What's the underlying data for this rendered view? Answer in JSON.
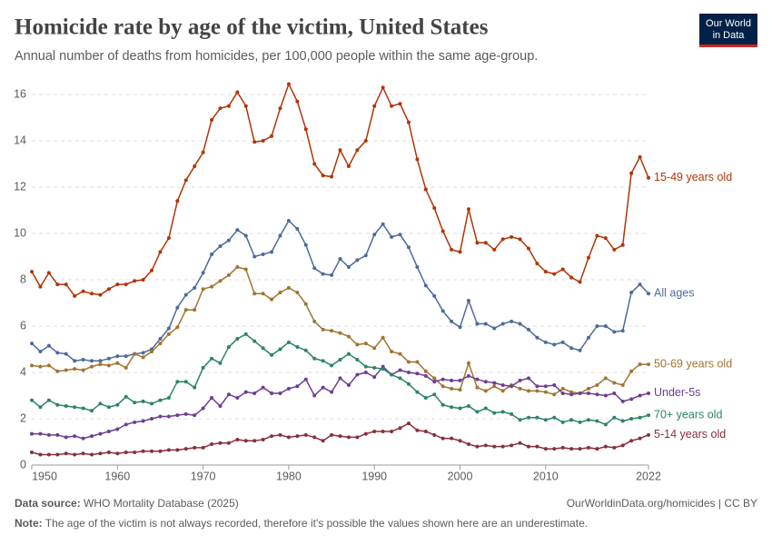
{
  "chart_data": {
    "type": "line",
    "title": "Homicide rate by age of the victim, United States",
    "subtitle": "Annual number of deaths from homicides, per 100,000 people within the same age-group.",
    "logo": [
      "Our World",
      "in Data"
    ],
    "source_label": "Data source:",
    "source": "WHO Mortality Database (2025)",
    "url": "OurWorldinData.org/homicides | CC BY",
    "note_label": "Note:",
    "note": "The age of the victim is not always recorded, therefore it's possible the values shown here are an underestimate.",
    "x": [
      1950,
      1951,
      1952,
      1953,
      1954,
      1955,
      1956,
      1957,
      1958,
      1959,
      1960,
      1961,
      1962,
      1963,
      1964,
      1965,
      1966,
      1967,
      1968,
      1969,
      1970,
      1971,
      1972,
      1973,
      1974,
      1975,
      1976,
      1977,
      1978,
      1979,
      1980,
      1981,
      1982,
      1983,
      1984,
      1985,
      1986,
      1987,
      1988,
      1989,
      1990,
      1991,
      1992,
      1993,
      1994,
      1995,
      1996,
      1997,
      1998,
      1999,
      2000,
      2001,
      2002,
      2003,
      2004,
      2005,
      2006,
      2007,
      2008,
      2009,
      2010,
      2011,
      2012,
      2013,
      2014,
      2015,
      2016,
      2017,
      2018,
      2019,
      2020,
      2021,
      2022
    ],
    "xlim": [
      1950,
      2022
    ],
    "xticks": [
      1950,
      1960,
      1970,
      1980,
      1990,
      2000,
      2010,
      2022
    ],
    "ylim": [
      0,
      16
    ],
    "yticks": [
      0,
      2,
      4,
      6,
      8,
      10,
      12,
      14,
      16
    ],
    "grid": true,
    "series": [
      {
        "name": "15-49 years old",
        "color": "#b13507",
        "values": [
          8.35,
          7.7,
          8.3,
          7.8,
          7.8,
          7.3,
          7.5,
          7.4,
          7.35,
          7.6,
          7.8,
          7.8,
          7.95,
          8.0,
          8.4,
          9.2,
          9.8,
          11.4,
          12.3,
          12.9,
          13.5,
          14.9,
          15.4,
          15.5,
          16.1,
          15.5,
          13.95,
          14.0,
          14.2,
          15.4,
          16.45,
          15.7,
          14.5,
          13.0,
          12.5,
          12.45,
          13.6,
          12.9,
          13.6,
          14.0,
          15.5,
          16.3,
          15.5,
          15.6,
          14.8,
          13.2,
          11.9,
          11.1,
          10.1,
          9.3,
          9.2,
          11.05,
          9.6,
          9.6,
          9.3,
          9.75,
          9.85,
          9.75,
          9.35,
          8.7,
          8.35,
          8.25,
          8.45,
          8.1,
          7.9,
          8.95,
          9.9,
          9.8,
          9.3,
          9.5,
          12.6,
          13.3,
          12.4
        ]
      },
      {
        "name": "All ages",
        "color": "#4c6a9c",
        "values": [
          5.25,
          4.9,
          5.15,
          4.85,
          4.8,
          4.5,
          4.55,
          4.5,
          4.5,
          4.6,
          4.7,
          4.7,
          4.8,
          4.85,
          5.0,
          5.45,
          5.9,
          6.8,
          7.35,
          7.65,
          8.3,
          9.1,
          9.45,
          9.7,
          10.15,
          9.9,
          9.0,
          9.1,
          9.2,
          9.9,
          10.55,
          10.2,
          9.5,
          8.5,
          8.25,
          8.2,
          8.9,
          8.55,
          8.85,
          9.05,
          9.95,
          10.4,
          9.85,
          9.95,
          9.4,
          8.55,
          7.75,
          7.3,
          6.65,
          6.2,
          5.95,
          7.1,
          6.1,
          6.1,
          5.9,
          6.1,
          6.2,
          6.1,
          5.85,
          5.5,
          5.3,
          5.2,
          5.3,
          5.05,
          4.95,
          5.5,
          6.0,
          6.0,
          5.75,
          5.8,
          7.45,
          7.8,
          7.4
        ]
      },
      {
        "name": "50-69 years old",
        "color": "#a2742f",
        "values": [
          4.3,
          4.25,
          4.3,
          4.05,
          4.1,
          4.15,
          4.1,
          4.25,
          4.35,
          4.3,
          4.4,
          4.2,
          4.8,
          4.65,
          4.9,
          5.25,
          5.65,
          5.95,
          6.7,
          6.7,
          7.6,
          7.7,
          7.95,
          8.2,
          8.55,
          8.45,
          7.4,
          7.4,
          7.15,
          7.45,
          7.65,
          7.45,
          6.95,
          6.2,
          5.85,
          5.8,
          5.7,
          5.55,
          5.2,
          5.25,
          5.05,
          5.5,
          4.9,
          4.8,
          4.45,
          4.45,
          4.05,
          3.75,
          3.4,
          3.3,
          3.25,
          4.4,
          3.35,
          3.2,
          3.4,
          3.2,
          3.45,
          3.3,
          3.2,
          3.2,
          3.15,
          3.05,
          3.3,
          3.15,
          3.1,
          3.3,
          3.45,
          3.75,
          3.55,
          3.45,
          4.05,
          4.35,
          4.35
        ]
      },
      {
        "name": "Under-5s",
        "color": "#6d3e91",
        "values": [
          1.35,
          1.35,
          1.3,
          1.3,
          1.2,
          1.25,
          1.15,
          1.25,
          1.35,
          1.45,
          1.55,
          1.75,
          1.85,
          1.9,
          2.0,
          2.1,
          2.1,
          2.15,
          2.2,
          2.15,
          2.45,
          2.9,
          2.55,
          3.05,
          2.9,
          3.15,
          3.1,
          3.35,
          3.1,
          3.1,
          3.3,
          3.4,
          3.7,
          3.0,
          3.35,
          3.15,
          3.75,
          3.45,
          3.9,
          4.0,
          3.8,
          4.25,
          3.9,
          4.1,
          4.0,
          3.95,
          3.85,
          3.6,
          3.7,
          3.65,
          3.65,
          3.85,
          3.7,
          3.6,
          3.55,
          3.45,
          3.4,
          3.65,
          3.75,
          3.4,
          3.4,
          3.45,
          3.1,
          3.05,
          3.1,
          3.1,
          3.05,
          3.0,
          3.1,
          2.75,
          2.85,
          3.0,
          3.1
        ]
      },
      {
        "name": "70+ years old",
        "color": "#2c8465",
        "values": [
          2.8,
          2.5,
          2.8,
          2.6,
          2.55,
          2.5,
          2.45,
          2.35,
          2.65,
          2.5,
          2.6,
          2.95,
          2.7,
          2.75,
          2.65,
          2.8,
          2.9,
          3.6,
          3.6,
          3.35,
          4.2,
          4.6,
          4.4,
          5.1,
          5.45,
          5.65,
          5.35,
          5.05,
          4.75,
          5.0,
          5.3,
          5.1,
          4.95,
          4.6,
          4.5,
          4.3,
          4.55,
          4.8,
          4.55,
          4.25,
          4.2,
          4.15,
          3.9,
          3.75,
          3.5,
          3.15,
          2.9,
          3.05,
          2.6,
          2.5,
          2.45,
          2.55,
          2.3,
          2.45,
          2.25,
          2.3,
          2.2,
          1.95,
          2.05,
          2.05,
          1.95,
          2.05,
          1.85,
          1.95,
          1.85,
          1.95,
          1.9,
          1.75,
          2.05,
          1.9,
          2.0,
          2.05,
          2.15
        ]
      },
      {
        "name": "5-14 years old",
        "color": "#883039",
        "values": [
          0.55,
          0.45,
          0.45,
          0.45,
          0.5,
          0.45,
          0.5,
          0.45,
          0.5,
          0.55,
          0.5,
          0.55,
          0.55,
          0.6,
          0.6,
          0.6,
          0.65,
          0.65,
          0.7,
          0.75,
          0.75,
          0.9,
          0.95,
          0.95,
          1.1,
          1.05,
          1.05,
          1.1,
          1.25,
          1.3,
          1.2,
          1.25,
          1.3,
          1.2,
          1.05,
          1.3,
          1.25,
          1.2,
          1.2,
          1.35,
          1.45,
          1.45,
          1.45,
          1.6,
          1.8,
          1.5,
          1.45,
          1.3,
          1.15,
          1.15,
          1.05,
          0.9,
          0.8,
          0.85,
          0.8,
          0.8,
          0.85,
          0.95,
          0.8,
          0.8,
          0.7,
          0.7,
          0.75,
          0.7,
          0.7,
          0.75,
          0.7,
          0.8,
          0.75,
          0.85,
          1.05,
          1.15,
          1.3
        ]
      }
    ]
  }
}
